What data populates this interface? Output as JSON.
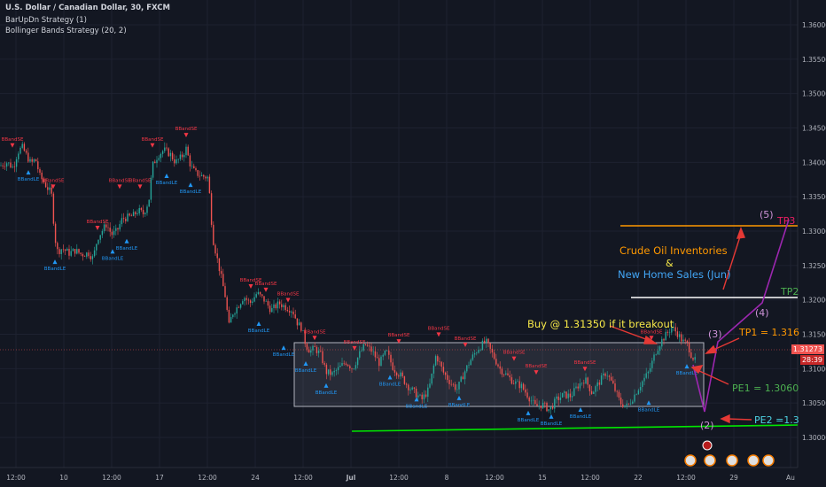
{
  "header": {
    "symbol_line": "U.S. Dollar / Canadian Dollar, 30, FXCM",
    "indicator_1": "BarUpDn Strategy (1)",
    "indicator_2": "Bollinger Bands Strategy (20, 2)"
  },
  "colors": {
    "background": "#131722",
    "up": "#26a69a",
    "down": "#ef5350",
    "grid": "#1e2230",
    "axis_text": "#b2b5be",
    "signal_long": "#2196f3",
    "signal_short": "#f23645",
    "orange": "#ff9800",
    "green": "#4caf50",
    "purple": "#9c27b0",
    "support_line": "#00e600"
  },
  "chart_data": {
    "type": "candlestick",
    "symbol": "USDCAD",
    "timeframe": "30",
    "price_axis": {
      "ticks": [
        "1.36000",
        "1.35500",
        "1.35000",
        "1.34500",
        "1.34000",
        "1.33500",
        "1.33000",
        "1.32500",
        "1.32000",
        "1.31500",
        "1.31000",
        "1.30500",
        "1.30000"
      ],
      "current_price": "1.31273",
      "countdown": "28:39",
      "ylim": [
        1.2968,
        1.3635
      ]
    },
    "time_axis": {
      "ticks": [
        "12:00",
        "10",
        "12:00",
        "17",
        "12:00",
        "24",
        "12:00",
        "Jul",
        "12:00",
        "8",
        "12:00",
        "15",
        "12:00",
        "22",
        "12:00",
        "29",
        "Au"
      ]
    },
    "price_path": [
      [
        0,
        1.3395
      ],
      [
        8,
        1.34
      ],
      [
        15,
        1.3392
      ],
      [
        20,
        1.3415
      ],
      [
        25,
        1.3422
      ],
      [
        30,
        1.341
      ],
      [
        35,
        1.3398
      ],
      [
        40,
        1.3405
      ],
      [
        45,
        1.338
      ],
      [
        50,
        1.337
      ],
      [
        55,
        1.336
      ],
      [
        58,
        1.3355
      ],
      [
        62,
        1.329
      ],
      [
        65,
        1.327
      ],
      [
        70,
        1.3275
      ],
      [
        78,
        1.3268
      ],
      [
        85,
        1.3272
      ],
      [
        92,
        1.3266
      ],
      [
        100,
        1.3268
      ],
      [
        105,
        1.326
      ],
      [
        110,
        1.329
      ],
      [
        115,
        1.33
      ],
      [
        120,
        1.331
      ],
      [
        126,
        1.3295
      ],
      [
        132,
        1.33
      ],
      [
        138,
        1.3318
      ],
      [
        144,
        1.332
      ],
      [
        150,
        1.3322
      ],
      [
        156,
        1.333
      ],
      [
        162,
        1.3325
      ],
      [
        168,
        1.3345
      ],
      [
        172,
        1.3395
      ],
      [
        178,
        1.341
      ],
      [
        185,
        1.3418
      ],
      [
        192,
        1.3412
      ],
      [
        198,
        1.34
      ],
      [
        205,
        1.3408
      ],
      [
        210,
        1.342
      ],
      [
        215,
        1.3395
      ],
      [
        220,
        1.3385
      ],
      [
        228,
        1.338
      ],
      [
        235,
        1.3378
      ],
      [
        240,
        1.329
      ],
      [
        245,
        1.326
      ],
      [
        250,
        1.323
      ],
      [
        255,
        1.32
      ],
      [
        258,
        1.316
      ],
      [
        262,
        1.318
      ],
      [
        268,
        1.319
      ],
      [
        275,
        1.3205
      ],
      [
        282,
        1.3195
      ],
      [
        290,
        1.321
      ],
      [
        298,
        1.32
      ],
      [
        306,
        1.3185
      ],
      [
        315,
        1.3195
      ],
      [
        322,
        1.319
      ],
      [
        330,
        1.3185
      ],
      [
        336,
        1.3165
      ],
      [
        340,
        1.316
      ],
      [
        345,
        1.3135
      ],
      [
        350,
        1.3125
      ],
      [
        355,
        1.313
      ],
      [
        362,
        1.312
      ],
      [
        368,
        1.3095
      ],
      [
        375,
        1.3092
      ],
      [
        382,
        1.31
      ],
      [
        390,
        1.311
      ],
      [
        398,
        1.31
      ],
      [
        405,
        1.312
      ],
      [
        412,
        1.3135
      ],
      [
        420,
        1.3125
      ],
      [
        428,
        1.3108
      ],
      [
        436,
        1.3125
      ],
      [
        444,
        1.31
      ],
      [
        452,
        1.309
      ],
      [
        460,
        1.3075
      ],
      [
        468,
        1.3065
      ],
      [
        476,
        1.3055
      ],
      [
        484,
        1.307
      ],
      [
        492,
        1.312
      ],
      [
        500,
        1.3095
      ],
      [
        508,
        1.308
      ],
      [
        516,
        1.307
      ],
      [
        524,
        1.3095
      ],
      [
        532,
        1.3115
      ],
      [
        540,
        1.313
      ],
      [
        548,
        1.314
      ],
      [
        556,
        1.312
      ],
      [
        564,
        1.31
      ],
      [
        572,
        1.309
      ],
      [
        580,
        1.308
      ],
      [
        588,
        1.3075
      ],
      [
        596,
        1.306
      ],
      [
        604,
        1.3045
      ],
      [
        612,
        1.3048
      ],
      [
        620,
        1.304
      ],
      [
        628,
        1.3055
      ],
      [
        636,
        1.3062
      ],
      [
        644,
        1.306
      ],
      [
        652,
        1.3075
      ],
      [
        660,
        1.3085
      ],
      [
        668,
        1.3065
      ],
      [
        676,
        1.308
      ],
      [
        684,
        1.3095
      ],
      [
        692,
        1.3075
      ],
      [
        700,
        1.305
      ],
      [
        708,
        1.3045
      ],
      [
        716,
        1.3062
      ],
      [
        724,
        1.308
      ],
      [
        732,
        1.3095
      ],
      [
        740,
        1.3125
      ],
      [
        746,
        1.314
      ],
      [
        752,
        1.315
      ],
      [
        758,
        1.316
      ],
      [
        764,
        1.3152
      ],
      [
        770,
        1.314
      ],
      [
        776,
        1.3135
      ],
      [
        780,
        1.312
      ],
      [
        785,
        1.311
      ]
    ],
    "signals": [
      {
        "label": "BBandSE",
        "side": "short",
        "x": 14,
        "price": 1.342
      },
      {
        "label": "BBandLE",
        "side": "long",
        "x": 32,
        "price": 1.339
      },
      {
        "label": "BBandSE",
        "side": "short",
        "x": 60,
        "price": 1.336
      },
      {
        "label": "BBandLE",
        "side": "long",
        "x": 62,
        "price": 1.326
      },
      {
        "label": "BBandSE",
        "side": "short",
        "x": 110,
        "price": 1.33
      },
      {
        "label": "BBandLE",
        "side": "long",
        "x": 127,
        "price": 1.3275
      },
      {
        "label": "BBandLE",
        "side": "long",
        "x": 143,
        "price": 1.329
      },
      {
        "label": "BBandSE",
        "side": "short",
        "x": 135,
        "price": 1.336
      },
      {
        "label": "BBandSE",
        "side": "short",
        "x": 158,
        "price": 1.336
      },
      {
        "label": "BBandSE",
        "side": "short",
        "x": 172,
        "price": 1.342
      },
      {
        "label": "BBandLE",
        "side": "long",
        "x": 188,
        "price": 1.3385
      },
      {
        "label": "BBandSE",
        "side": "short",
        "x": 210,
        "price": 1.3435
      },
      {
        "label": "BBandLE",
        "side": "long",
        "x": 215,
        "price": 1.3372
      },
      {
        "label": "BBandSE",
        "side": "short",
        "x": 283,
        "price": 1.3215
      },
      {
        "label": "BBandLE",
        "side": "long",
        "x": 292,
        "price": 1.317
      },
      {
        "label": "BBandSE",
        "side": "short",
        "x": 300,
        "price": 1.321
      },
      {
        "label": "BBandSE",
        "side": "short",
        "x": 325,
        "price": 1.3195
      },
      {
        "label": "BBandLE",
        "side": "long",
        "x": 320,
        "price": 1.3135
      },
      {
        "label": "BBandSE",
        "side": "short",
        "x": 355,
        "price": 1.314
      },
      {
        "label": "BBandLE",
        "side": "long",
        "x": 345,
        "price": 1.3112
      },
      {
        "label": "BBandLE",
        "side": "long",
        "x": 368,
        "price": 1.308
      },
      {
        "label": "BBandSE",
        "side": "short",
        "x": 400,
        "price": 1.3125
      },
      {
        "label": "BBandLE",
        "side": "long",
        "x": 440,
        "price": 1.3092
      },
      {
        "label": "BBandSE",
        "side": "short",
        "x": 450,
        "price": 1.3135
      },
      {
        "label": "BBandLE",
        "side": "long",
        "x": 470,
        "price": 1.306
      },
      {
        "label": "BBandSE",
        "side": "short",
        "x": 495,
        "price": 1.3145
      },
      {
        "label": "BBandLE",
        "side": "long",
        "x": 518,
        "price": 1.3062
      },
      {
        "label": "BBandSE",
        "side": "short",
        "x": 525,
        "price": 1.313
      },
      {
        "label": "BBandSE",
        "side": "short",
        "x": 580,
        "price": 1.311
      },
      {
        "label": "BBandSE",
        "side": "short",
        "x": 605,
        "price": 1.309
      },
      {
        "label": "BBandLE",
        "side": "long",
        "x": 596,
        "price": 1.304
      },
      {
        "label": "BBandLE",
        "side": "long",
        "x": 622,
        "price": 1.3035
      },
      {
        "label": "BBandSE",
        "side": "short",
        "x": 660,
        "price": 1.3095
      },
      {
        "label": "BBandLE",
        "side": "long",
        "x": 655,
        "price": 1.3045
      },
      {
        "label": "BBandSE",
        "side": "short",
        "x": 735,
        "price": 1.314
      },
      {
        "label": "BBandLE",
        "side": "long",
        "x": 732,
        "price": 1.3055
      },
      {
        "label": "BBandLE",
        "side": "long",
        "x": 775,
        "price": 1.3108
      }
    ],
    "annotations": [
      {
        "id": "buy",
        "text": "Buy @ 1.31350 if it breakout",
        "color": "#f7e948"
      },
      {
        "id": "news_1",
        "text": "Crude Oil Inventories",
        "color": "#ff9800"
      },
      {
        "id": "news_amp",
        "text": "&",
        "color": "#f7e948"
      },
      {
        "id": "news_2",
        "text": "New Home Sales (Jun)",
        "color": "#42a5f5"
      },
      {
        "id": "tp3",
        "text": "TP3",
        "color": "#e91e63"
      },
      {
        "id": "tp2",
        "text": "TP2",
        "color": "#4caf50"
      },
      {
        "id": "tp1",
        "text": "TP1 = 1.316",
        "color": "#ff9800"
      },
      {
        "id": "pe1",
        "text": "PE1 = 1.3060",
        "color": "#4caf50"
      },
      {
        "id": "pe2",
        "text": "PE2 =1.3",
        "color": "#4dd0e1"
      },
      {
        "id": "wave_2",
        "text": "(2)",
        "color": "#ce93d8"
      },
      {
        "id": "wave_3",
        "text": "(3)",
        "color": "#ce93d8"
      },
      {
        "id": "wave_4",
        "text": "(4)",
        "color": "#ce93d8"
      },
      {
        "id": "wave_5",
        "text": "(5)",
        "color": "#ce93d8"
      }
    ],
    "levels": {
      "tp3": 1.3304,
      "tp2": 1.3208,
      "tp1": 1.3158,
      "range_top": 1.3135,
      "range_bottom": 1.3046,
      "pe1": 1.306,
      "pe2": 1.3026
    }
  }
}
